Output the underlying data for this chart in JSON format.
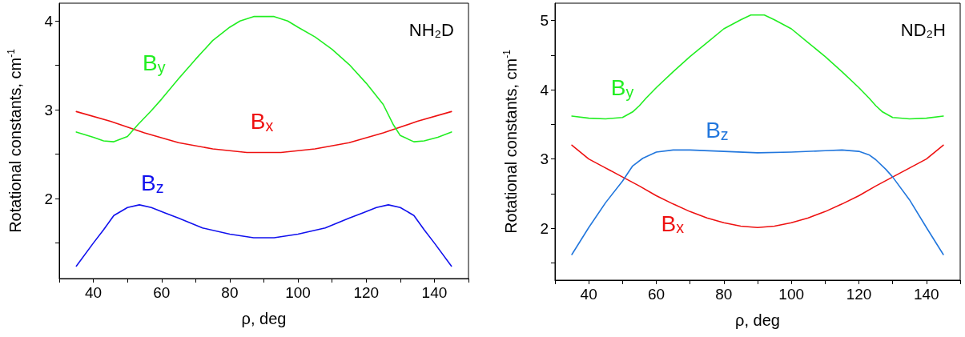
{
  "chart_data": [
    {
      "type": "line",
      "xlabel": "ρ, deg",
      "ylabel": "Rotational constants, cm$^{-1}$",
      "grid": false,
      "marker": "none",
      "line_style": "solid",
      "xlim": [
        30,
        150
      ],
      "xticks": [
        {
          "value": 30,
          "label": null
        },
        40,
        {
          "value": 50,
          "label": null
        },
        60,
        {
          "value": 70,
          "label": null
        },
        80,
        {
          "value": 90,
          "label": null
        },
        100,
        {
          "value": 110,
          "label": null
        },
        120,
        {
          "value": 130,
          "label": null
        },
        140,
        {
          "value": 150,
          "label": null
        }
      ],
      "ylim": [
        1.1,
        4.2
      ],
      "yticks": [
        {
          "value": 1.5,
          "label": null
        },
        2,
        {
          "value": 2.5,
          "label": null
        },
        3,
        {
          "value": 3.5,
          "label": null
        },
        4
      ],
      "series": [
        {
          "name": "B$_{x}$",
          "color": "#ee1111",
          "x": [
            35,
            45,
            55,
            65,
            75,
            85,
            90,
            95,
            105,
            115,
            125,
            135,
            145
          ],
          "values": [
            2.98,
            2.87,
            2.74,
            2.63,
            2.56,
            2.52,
            2.52,
            2.52,
            2.56,
            2.63,
            2.74,
            2.87,
            2.98
          ]
        },
        {
          "name": "B$_{y}$",
          "color": "#22ee22",
          "x": [
            35,
            40,
            43,
            46,
            50,
            53,
            57,
            60,
            65,
            70,
            75,
            80,
            83,
            87,
            93,
            97,
            100,
            105,
            110,
            115,
            120,
            125,
            128,
            130,
            134,
            137,
            141,
            145
          ],
          "values": [
            2.75,
            2.69,
            2.65,
            2.64,
            2.7,
            2.83,
            2.99,
            3.12,
            3.35,
            3.57,
            3.78,
            3.93,
            4.0,
            4.05,
            4.05,
            4.0,
            3.93,
            3.82,
            3.68,
            3.51,
            3.3,
            3.06,
            2.83,
            2.71,
            2.64,
            2.65,
            2.69,
            2.75
          ]
        },
        {
          "name": "B$_{z}$",
          "color": "#1111ee",
          "x": [
            35,
            40,
            43,
            46,
            50,
            53.5,
            57,
            61,
            65,
            72,
            80,
            87,
            93,
            100,
            108,
            115,
            119,
            123,
            126.5,
            130,
            134,
            137,
            140,
            145
          ],
          "values": [
            1.24,
            1.5,
            1.65,
            1.81,
            1.9,
            1.93,
            1.9,
            1.84,
            1.78,
            1.67,
            1.6,
            1.56,
            1.56,
            1.6,
            1.67,
            1.78,
            1.84,
            1.9,
            1.93,
            1.9,
            1.81,
            1.65,
            1.5,
            1.24
          ]
        }
      ],
      "annotations": [
        "NH₂D"
      ]
    },
    {
      "type": "line",
      "xlabel": "ρ, deg",
      "ylabel": "Rotational constants, cm$^{-1}$",
      "grid": false,
      "marker": "none",
      "line_style": "solid",
      "xlim": [
        30,
        150
      ],
      "xticks": [
        {
          "value": 30,
          "label": null
        },
        40,
        {
          "value": 50,
          "label": null
        },
        60,
        {
          "value": 70,
          "label": null
        },
        80,
        {
          "value": 90,
          "label": null
        },
        100,
        {
          "value": 110,
          "label": null
        },
        120,
        {
          "value": 130,
          "label": null
        },
        140,
        {
          "value": 150,
          "label": null
        }
      ],
      "ylim": [
        1.25,
        5.25
      ],
      "yticks": [
        {
          "value": 1.5,
          "label": null
        },
        2,
        {
          "value": 2.5,
          "label": null
        },
        3,
        {
          "value": 3.5,
          "label": null
        },
        4,
        {
          "value": 4.5,
          "label": null
        },
        5
      ],
      "series": [
        {
          "name": "B$_{x}$",
          "color": "#ee1111",
          "x": [
            35,
            40,
            45,
            50,
            55,
            60,
            65,
            70,
            75,
            80,
            85,
            90,
            95,
            100,
            105,
            110,
            115,
            120,
            125,
            130,
            135,
            140,
            145
          ],
          "values": [
            3.2,
            3.0,
            2.87,
            2.74,
            2.61,
            2.47,
            2.35,
            2.24,
            2.15,
            2.08,
            2.03,
            2.01,
            2.03,
            2.08,
            2.15,
            2.24,
            2.35,
            2.47,
            2.61,
            2.74,
            2.87,
            3.0,
            3.2
          ]
        },
        {
          "name": "B$_{y}$",
          "color": "#22ee22",
          "x": [
            35,
            40,
            45,
            50,
            53,
            55,
            57,
            60,
            65,
            70,
            75,
            80,
            85,
            88,
            92,
            95,
            100,
            105,
            110,
            115,
            120,
            123,
            125,
            127,
            130,
            135,
            140,
            145
          ],
          "values": [
            3.62,
            3.59,
            3.58,
            3.6,
            3.68,
            3.77,
            3.88,
            4.03,
            4.26,
            4.48,
            4.68,
            4.88,
            5.01,
            5.08,
            5.08,
            5.01,
            4.88,
            4.68,
            4.48,
            4.26,
            4.03,
            3.88,
            3.77,
            3.68,
            3.6,
            3.58,
            3.59,
            3.62
          ]
        },
        {
          "name": "B$_{z}$",
          "color": "#2277dd",
          "x": [
            35,
            40,
            45,
            50,
            53,
            56,
            60,
            65,
            70,
            80,
            90,
            100,
            110,
            115,
            120,
            123,
            125,
            128,
            130,
            135,
            140,
            145
          ],
          "values": [
            1.62,
            2.01,
            2.37,
            2.68,
            2.9,
            3.01,
            3.1,
            3.13,
            3.13,
            3.11,
            3.09,
            3.1,
            3.12,
            3.13,
            3.11,
            3.06,
            2.99,
            2.85,
            2.74,
            2.41,
            2.01,
            1.62
          ]
        }
      ],
      "annotations": [
        "ND₂H"
      ]
    }
  ]
}
